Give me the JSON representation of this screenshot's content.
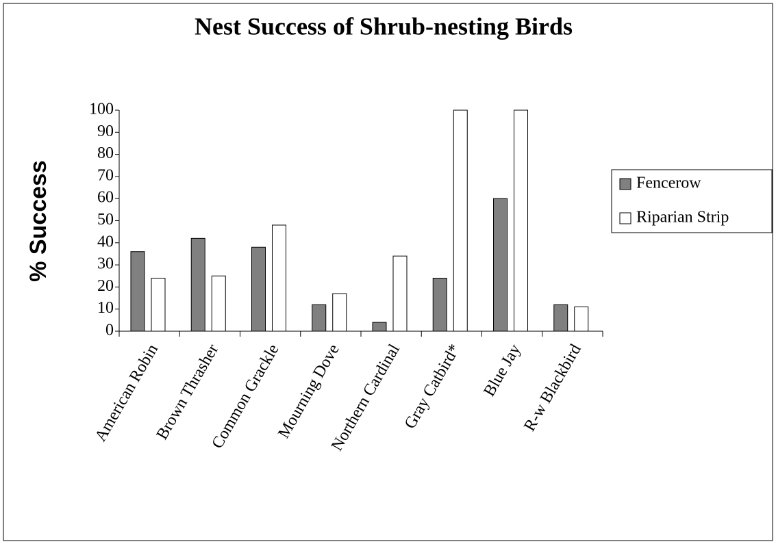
{
  "chart_data": {
    "type": "bar",
    "title": "Nest Success of Shrub-nesting Birds",
    "y_label": "% Success",
    "categories": [
      "American Robin",
      "Brown Thrasher",
      "Common Grackle",
      "Mourning Dove",
      "Northern Cardinal",
      "Gray Catbird*",
      "Blue Jay",
      "R-w Blackbird"
    ],
    "series": [
      {
        "name": "Fencerow",
        "color": "#808080",
        "values": [
          36,
          42,
          38,
          12,
          4,
          24,
          60,
          12
        ]
      },
      {
        "name": "Riparian Strip",
        "color": "#ffffff",
        "values": [
          24,
          25,
          48,
          17,
          34,
          100,
          100,
          11
        ]
      }
    ],
    "ylim": [
      0,
      100
    ],
    "yticks": [
      0,
      10,
      20,
      30,
      40,
      50,
      60,
      70,
      80,
      90,
      100
    ],
    "grid": false,
    "legend": "right"
  }
}
